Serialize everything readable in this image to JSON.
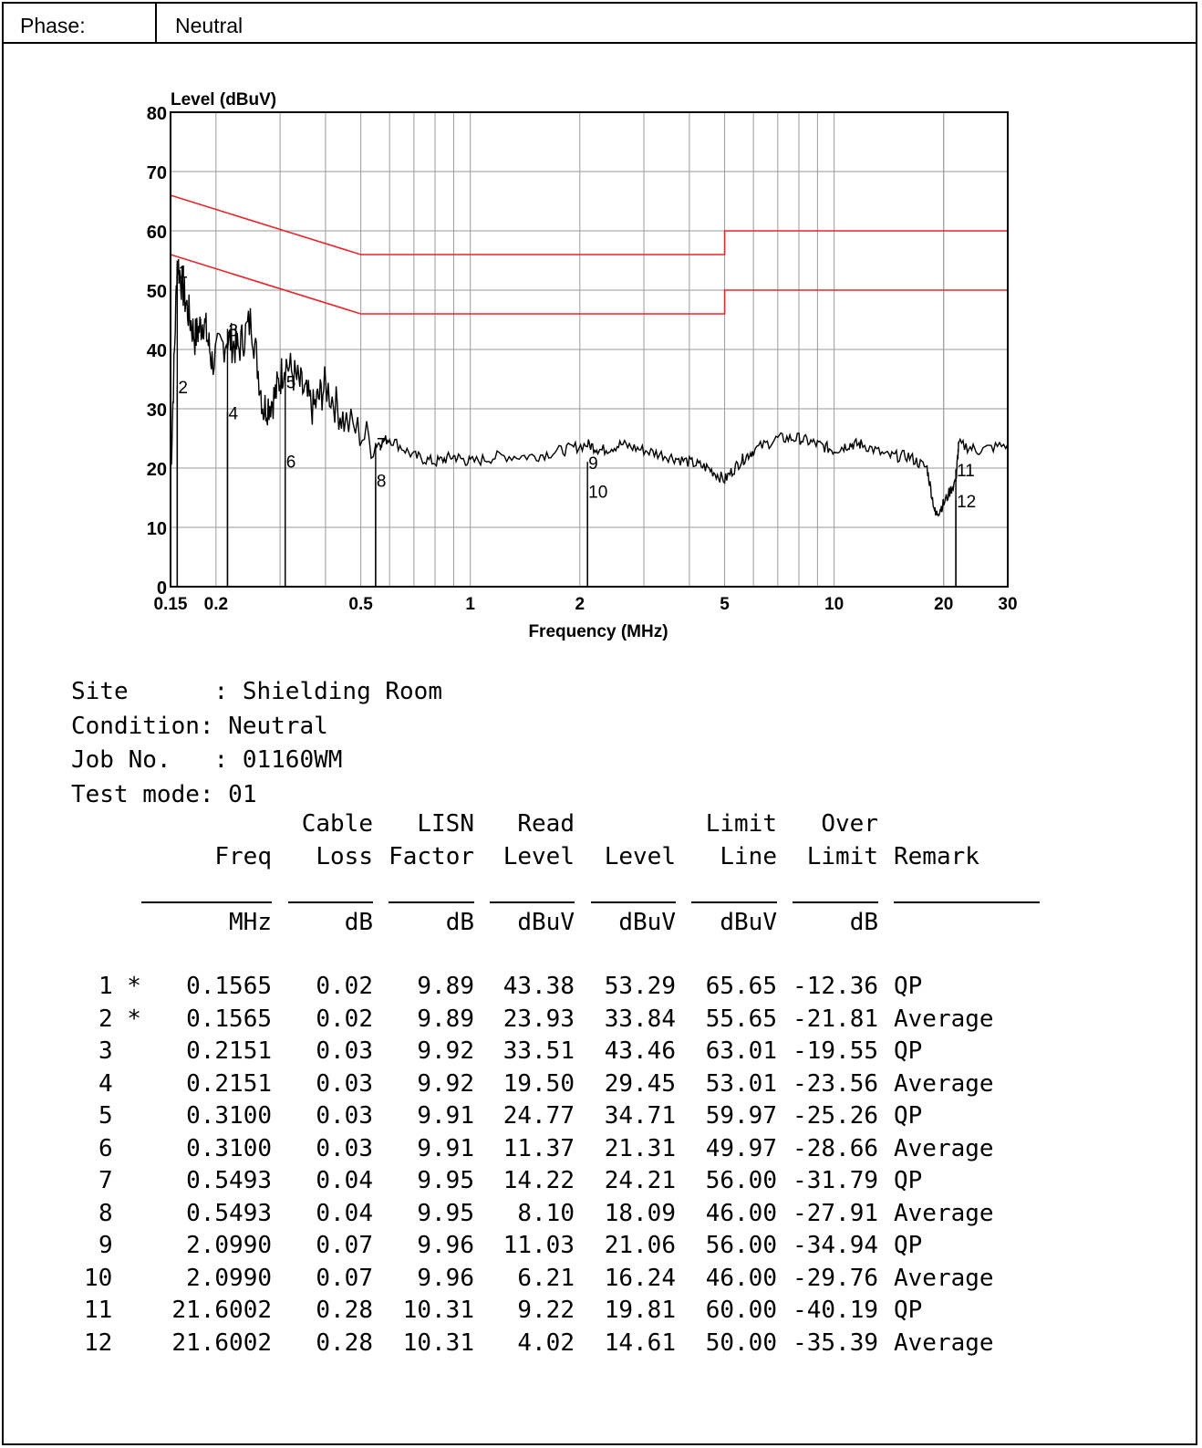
{
  "phase": {
    "label": "Phase:",
    "value": "Neutral"
  },
  "chart_data": {
    "type": "line",
    "title": "",
    "xlabel": "Frequency (MHz)",
    "ylabel": "Level (dBuV)",
    "xscale": "log",
    "xlim": [
      0.15,
      30
    ],
    "ylim": [
      0,
      80
    ],
    "xticks": [
      0.15,
      0.2,
      0.5,
      1,
      2,
      5,
      10,
      20,
      30
    ],
    "xtick_labels": [
      "0.15",
      "0.2",
      "0.5",
      "1",
      "2",
      "5",
      "10",
      "20",
      "30"
    ],
    "yticks": [
      0,
      10,
      20,
      30,
      40,
      50,
      60,
      70,
      80
    ],
    "grid": true,
    "series": [
      {
        "color": "#e8262a",
        "x": [
          0.15,
          0.5,
          0.5,
          5,
          5,
          30
        ],
        "y": [
          66,
          56,
          56,
          56,
          60,
          60
        ]
      },
      {
        "color": "#e8262a",
        "x": [
          0.15,
          0.5,
          0.5,
          5,
          5,
          30
        ],
        "y": [
          56,
          46,
          46,
          46,
          50,
          50
        ]
      },
      {
        "color": "#000000",
        "x": [
          0.15,
          0.1565,
          0.165,
          0.175,
          0.185,
          0.195,
          0.2151,
          0.23,
          0.25,
          0.27,
          0.29,
          0.31,
          0.34,
          0.37,
          0.4,
          0.45,
          0.5493,
          0.6,
          0.7,
          0.8,
          0.9,
          1.0,
          1.2,
          1.5,
          1.8,
          2.099,
          2.3,
          2.6,
          3.0,
          3.5,
          4.0,
          4.5,
          5.0,
          5.5,
          6.0,
          7.0,
          8.0,
          9.0,
          10,
          11,
          12,
          14,
          16,
          18,
          19,
          20,
          21.6,
          22,
          25,
          30
        ],
        "y": [
          18,
          55,
          48,
          42,
          45,
          38,
          42,
          40,
          45,
          30,
          32,
          38,
          34,
          30,
          34,
          28,
          24,
          25,
          22,
          21,
          22,
          21,
          22,
          22,
          23,
          24,
          23,
          24,
          23,
          22,
          21,
          20,
          18,
          21,
          23,
          25,
          25,
          24,
          23,
          24,
          24,
          22,
          22,
          20,
          12,
          14,
          18,
          24,
          23,
          24
        ]
      }
    ],
    "markers": [
      {
        "label": "1",
        "x": 0.1565,
        "y": 53.29
      },
      {
        "label": "2",
        "x": 0.1565,
        "y": 33.84
      },
      {
        "label": "3",
        "x": 0.2151,
        "y": 43.46
      },
      {
        "label": "4",
        "x": 0.2151,
        "y": 29.45
      },
      {
        "label": "5",
        "x": 0.31,
        "y": 34.71
      },
      {
        "label": "6",
        "x": 0.31,
        "y": 21.31
      },
      {
        "label": "7",
        "x": 0.5493,
        "y": 24.21
      },
      {
        "label": "8",
        "x": 0.5493,
        "y": 18.09
      },
      {
        "label": "9",
        "x": 2.099,
        "y": 21.06
      },
      {
        "label": "10",
        "x": 2.099,
        "y": 16.24
      },
      {
        "label": "11",
        "x": 21.6002,
        "y": 19.81
      },
      {
        "label": "12",
        "x": 21.6002,
        "y": 14.61
      }
    ]
  },
  "meta": {
    "site": "Site      : Shielding Room",
    "condition": "Condition: Neutral",
    "job": "Job No.   : 01160WM",
    "mode": "Test mode: 01"
  },
  "table": {
    "header1": [
      "",
      "",
      "Cable",
      "LISN",
      "Read",
      "",
      "Limit",
      "Over",
      ""
    ],
    "header2": [
      "",
      "Freq",
      "Loss",
      "Factor",
      "Level",
      "Level",
      "Line",
      "Limit",
      "Remark"
    ],
    "units": [
      "",
      "MHz",
      "dB",
      "dB",
      "dBuV",
      "dBuV",
      "dBuV",
      "dB",
      ""
    ],
    "rows": [
      [
        "1 *",
        "0.1565",
        "0.02",
        "9.89",
        "43.38",
        "53.29",
        "65.65",
        "-12.36",
        "QP"
      ],
      [
        "2 *",
        "0.1565",
        "0.02",
        "9.89",
        "23.93",
        "33.84",
        "55.65",
        "-21.81",
        "Average"
      ],
      [
        "3",
        "0.2151",
        "0.03",
        "9.92",
        "33.51",
        "43.46",
        "63.01",
        "-19.55",
        "QP"
      ],
      [
        "4",
        "0.2151",
        "0.03",
        "9.92",
        "19.50",
        "29.45",
        "53.01",
        "-23.56",
        "Average"
      ],
      [
        "5",
        "0.3100",
        "0.03",
        "9.91",
        "24.77",
        "34.71",
        "59.97",
        "-25.26",
        "QP"
      ],
      [
        "6",
        "0.3100",
        "0.03",
        "9.91",
        "11.37",
        "21.31",
        "49.97",
        "-28.66",
        "Average"
      ],
      [
        "7",
        "0.5493",
        "0.04",
        "9.95",
        "14.22",
        "24.21",
        "56.00",
        "-31.79",
        "QP"
      ],
      [
        "8",
        "0.5493",
        "0.04",
        "9.95",
        "8.10",
        "18.09",
        "46.00",
        "-27.91",
        "Average"
      ],
      [
        "9",
        "2.0990",
        "0.07",
        "9.96",
        "11.03",
        "21.06",
        "56.00",
        "-34.94",
        "QP"
      ],
      [
        "10",
        "2.0990",
        "0.07",
        "9.96",
        "6.21",
        "16.24",
        "46.00",
        "-29.76",
        "Average"
      ],
      [
        "11",
        "21.6002",
        "0.28",
        "10.31",
        "9.22",
        "19.81",
        "60.00",
        "-40.19",
        "QP"
      ],
      [
        "12",
        "21.6002",
        "0.28",
        "10.31",
        "4.02",
        "14.61",
        "50.00",
        "-35.39",
        "Average"
      ]
    ]
  }
}
